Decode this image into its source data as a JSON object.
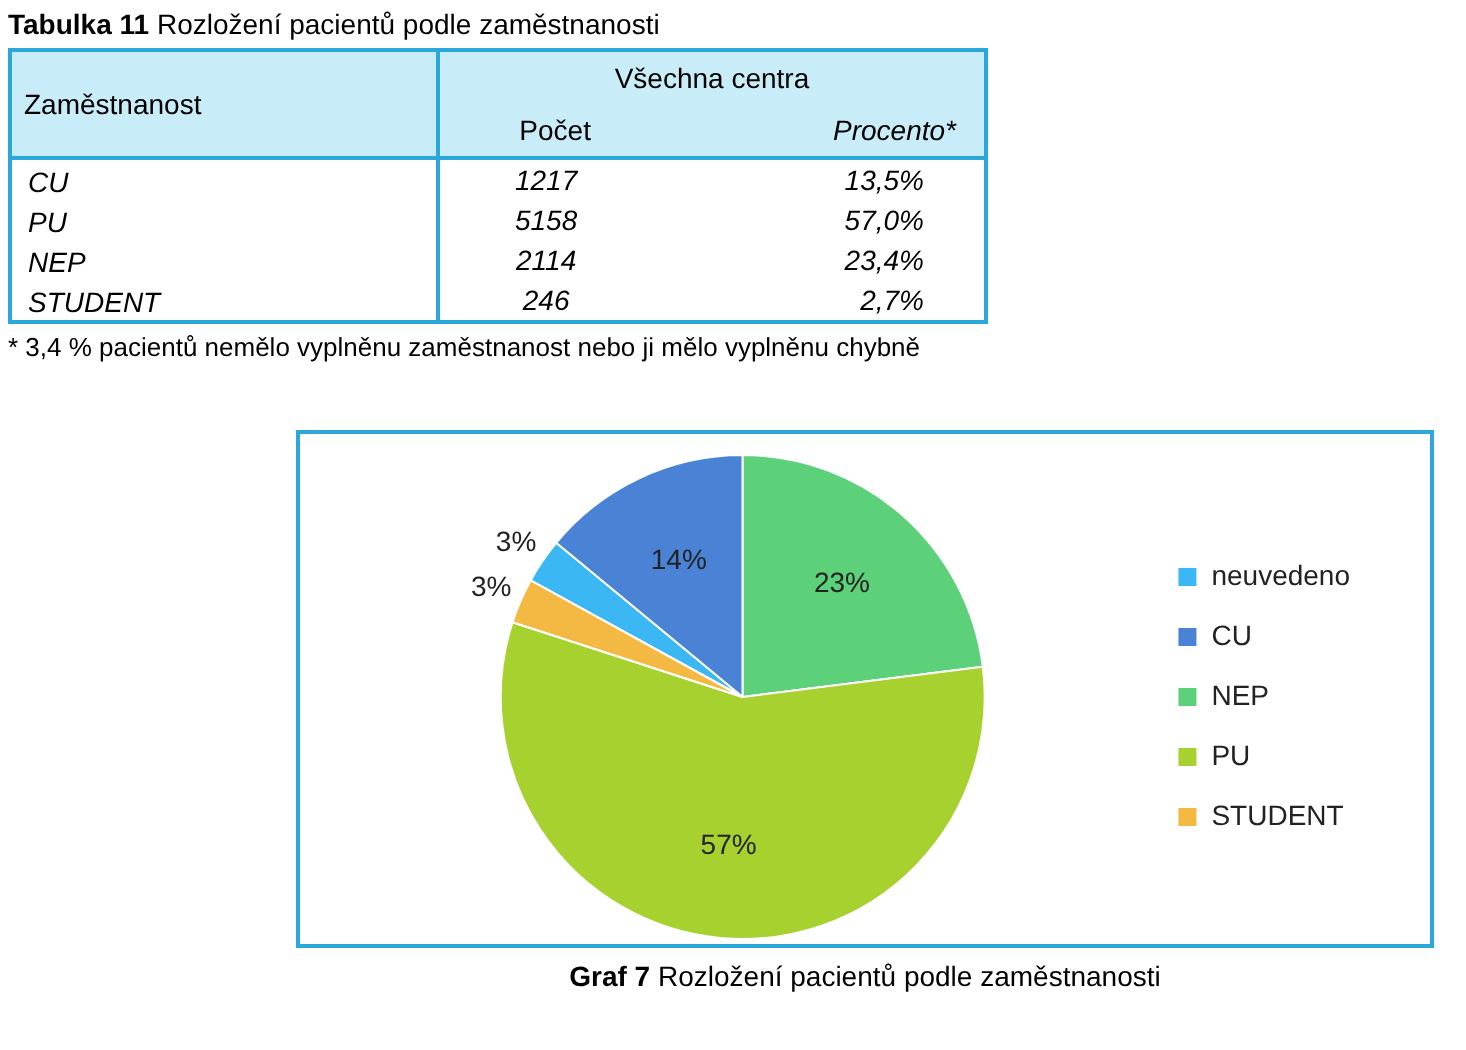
{
  "chart_data": [
    {
      "type": "other",
      "title": "Tabulka 11 Rozložení pacientů podle zaměstnanosti",
      "xlabel": "Zaměstnanost",
      "legend_title": "Všechna centra",
      "categories": [
        "CU",
        "PU",
        "NEP",
        "STUDENT"
      ],
      "series": [
        {
          "name": "Počet",
          "values": [
            1217,
            5158,
            2114,
            246
          ]
        },
        {
          "name": "Procento*",
          "values": [
            13.5,
            57.0,
            23.4,
            2.7
          ],
          "value_labels": [
            "13,5%",
            "57,0%",
            "23,4%",
            "2,7%"
          ]
        }
      ],
      "data_labels": true,
      "annotations": [
        "* 3,4 % pacientů nemělo vyplněnu zaměstnanost nebo ji mělo vyplněnu chybně"
      ]
    },
    {
      "type": "pie",
      "title": "Graf 7 Rozložení pacientů podle zaměstnanosti",
      "categories": [
        "neuvedeno",
        "CU",
        "NEP",
        "PU",
        "STUDENT"
      ],
      "values": [
        3,
        14,
        23,
        57,
        3
      ],
      "colors": [
        "#3bb8f4",
        "#4a83d6",
        "#5dd07a",
        "#a6d12e",
        "#f4b942"
      ],
      "value_labels": [
        "3%",
        "14%",
        "23%",
        "57%",
        "3%"
      ],
      "legend": "right"
    }
  ]
}
